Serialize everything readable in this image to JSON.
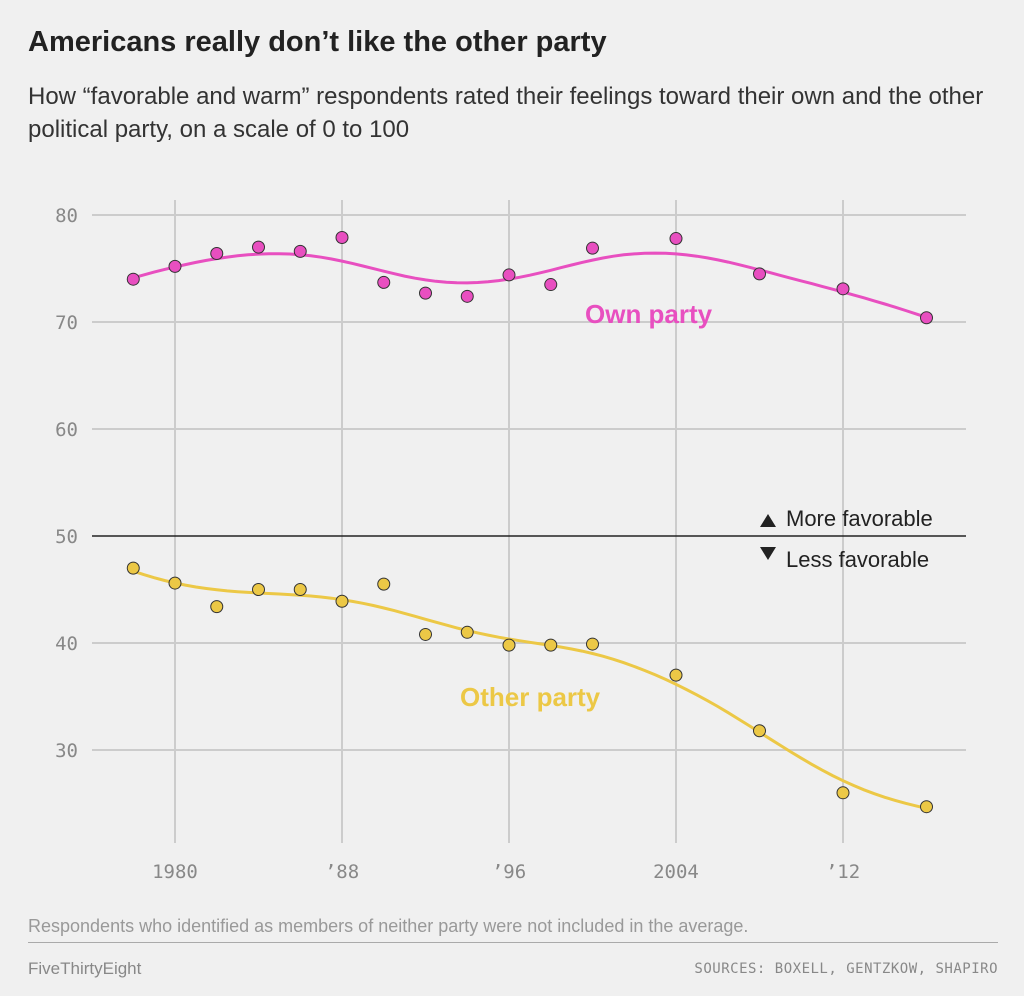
{
  "title": "Americans really don’t like the other party",
  "subtitle": "How “favorable and warm” respondents rated their feelings toward their own and the other political party, on a scale of 0 to 100",
  "note": "Respondents who identified as members of neither party were not included in the average.",
  "brand": "FiveThirtyEight",
  "sources": "SOURCES: BOXELL, GENTZKOW, SHAPIRO",
  "chart_data": {
    "type": "scatter",
    "x": [
      1978,
      1980,
      1982,
      1984,
      1986,
      1988,
      1990,
      1992,
      1994,
      1996,
      1998,
      2000,
      2004,
      2008,
      2012,
      2016
    ],
    "series": [
      {
        "name": "Own party",
        "color": "#e84fc0",
        "values": [
          74.0,
          75.2,
          76.4,
          77.0,
          76.6,
          77.9,
          73.7,
          72.7,
          72.4,
          74.4,
          73.5,
          76.9,
          77.8,
          74.5,
          73.1,
          70.4
        ]
      },
      {
        "name": "Other party",
        "color": "#ecc846",
        "values": [
          47.0,
          45.6,
          43.4,
          45.0,
          45.0,
          43.9,
          45.5,
          40.8,
          41.0,
          39.8,
          39.8,
          39.9,
          37.0,
          31.8,
          26.0,
          24.7
        ]
      }
    ],
    "xticks": [
      {
        "value": 1980,
        "label": "1980"
      },
      {
        "value": 1988,
        "label": "’88"
      },
      {
        "value": 1996,
        "label": "’96"
      },
      {
        "value": 2004,
        "label": "2004"
      },
      {
        "value": 2012,
        "label": "’12"
      }
    ],
    "yticks": [
      30,
      40,
      50,
      60,
      70,
      80
    ],
    "ylim": [
      21,
      81
    ],
    "reference_line": 50,
    "annotations": {
      "above": "More favorable",
      "below": "Less favorable"
    },
    "trend_lines": true,
    "grid": true
  }
}
